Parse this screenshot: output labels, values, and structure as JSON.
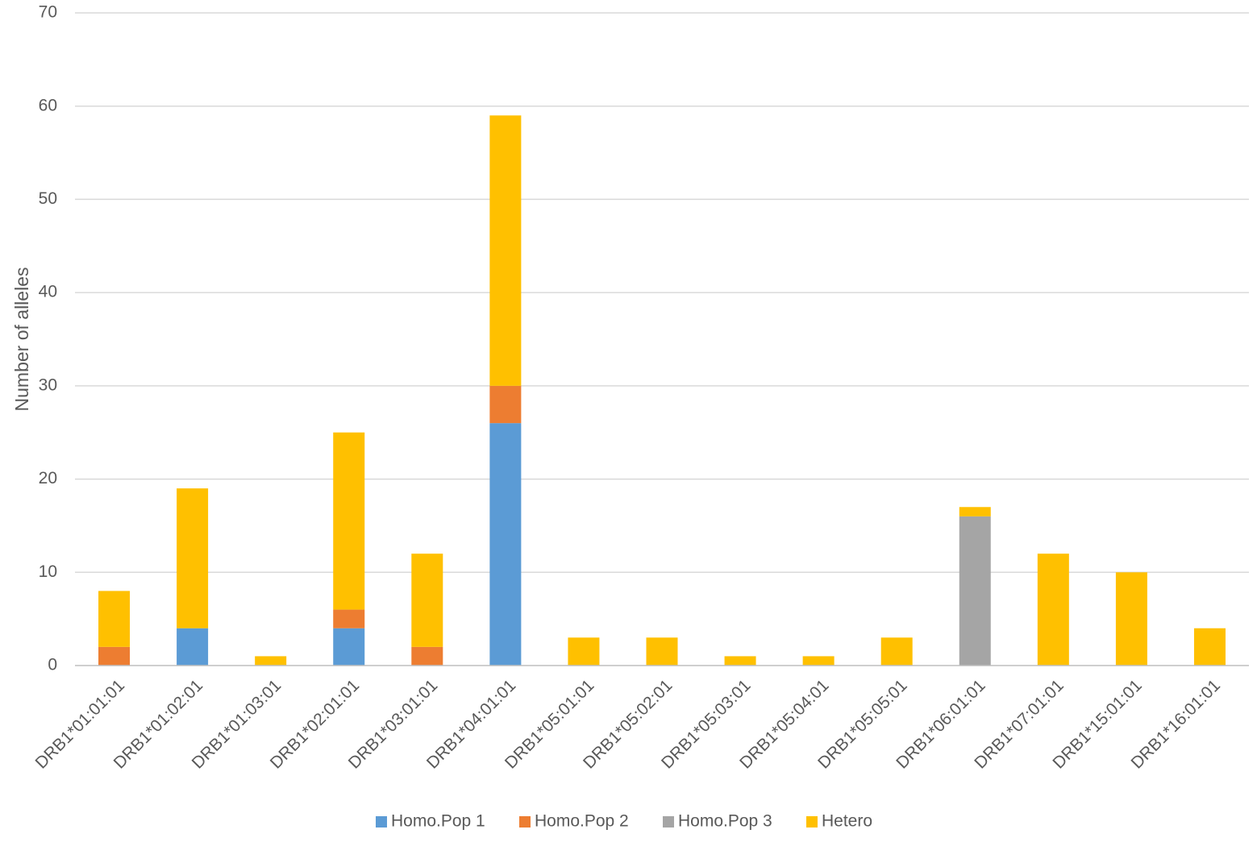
{
  "chart_data": {
    "type": "bar",
    "stacked": true,
    "title": "",
    "xlabel": "",
    "ylabel": "Number of alleles",
    "ylim": [
      0,
      70
    ],
    "yticks": [
      0,
      10,
      20,
      30,
      40,
      50,
      60,
      70
    ],
    "grid": true,
    "legend_position": "bottom",
    "categories": [
      "DRB1*01:01:01",
      "DRB1*01:02:01",
      "DRB1*01:03:01",
      "DRB1*02:01:01",
      "DRB1*03:01:01",
      "DRB1*04:01:01",
      "DRB1*05:01:01",
      "DRB1*05:02:01",
      "DRB1*05:03:01",
      "DRB1*05:04:01",
      "DRB1*05:05:01",
      "DRB1*06:01:01",
      "DRB1*07:01:01",
      "DRB1*15:01:01",
      "DRB1*16:01:01"
    ],
    "series": [
      {
        "name": "Homo.Pop 1",
        "color": "#5b9bd5",
        "values": [
          0,
          4,
          0,
          4,
          0,
          26,
          0,
          0,
          0,
          0,
          0,
          0,
          0,
          0,
          0
        ]
      },
      {
        "name": "Homo.Pop 2",
        "color": "#ed7d31",
        "values": [
          2,
          0,
          0,
          2,
          2,
          4,
          0,
          0,
          0,
          0,
          0,
          0,
          0,
          0,
          0
        ]
      },
      {
        "name": "Homo.Pop 3",
        "color": "#a5a5a5",
        "values": [
          0,
          0,
          0,
          0,
          0,
          0,
          0,
          0,
          0,
          0,
          0,
          16,
          0,
          0,
          0
        ]
      },
      {
        "name": "Hetero",
        "color": "#ffc000",
        "values": [
          6,
          15,
          1,
          19,
          10,
          29,
          3,
          3,
          1,
          1,
          3,
          1,
          12,
          10,
          4
        ]
      }
    ],
    "gridline_color": "#d9d9d9",
    "axis_line_color": "#bfbfbf"
  }
}
